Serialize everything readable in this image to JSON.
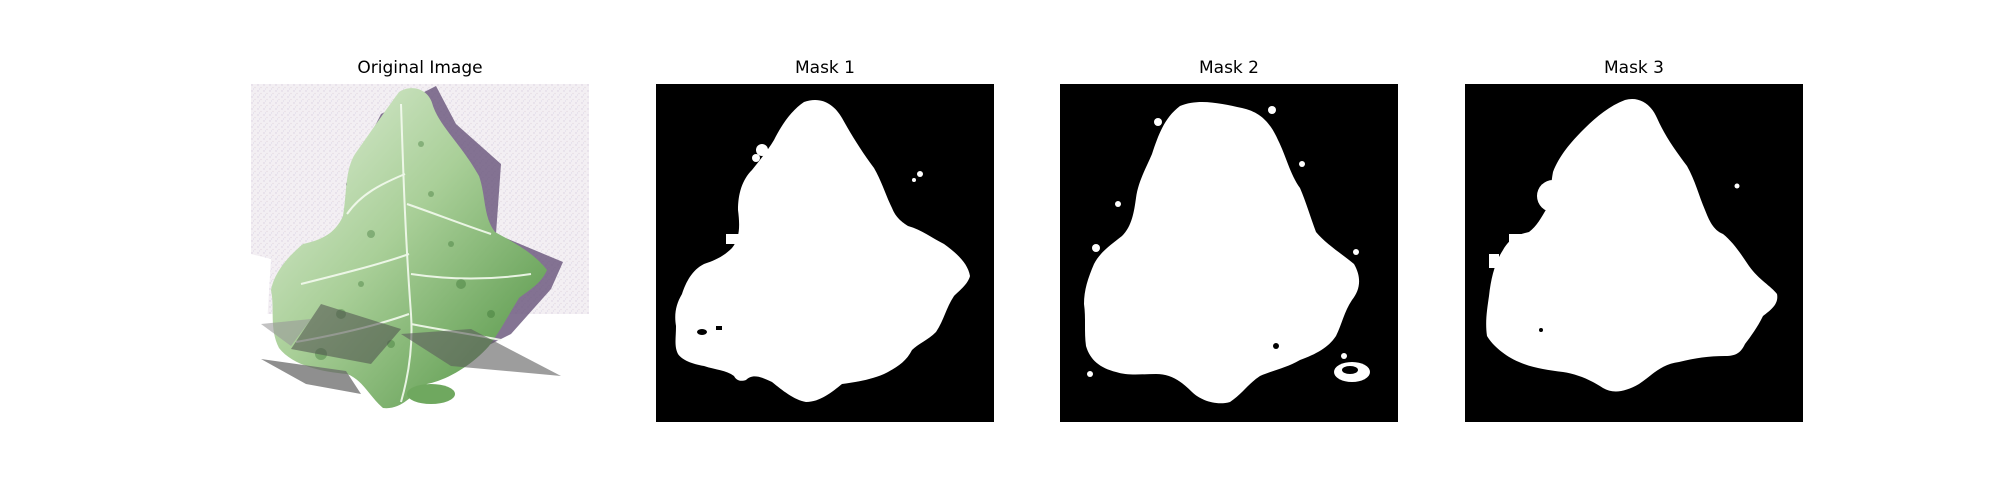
{
  "panels": [
    {
      "title": "Original Image",
      "icon": "leaf-photo"
    },
    {
      "title": "Mask 1",
      "icon": "segmentation-mask"
    },
    {
      "title": "Mask 2",
      "icon": "segmentation-mask"
    },
    {
      "title": "Mask 3",
      "icon": "segmentation-mask"
    }
  ],
  "colors": {
    "background": "#ffffff",
    "mask_background": "#000000",
    "mask_foreground": "#ffffff",
    "leaf_light": "#cfe6c4",
    "leaf_mid": "#7fb36e",
    "leaf_dark": "#2f6a2a",
    "shadow": "#6b5a7a",
    "paper": "#f1eef1"
  }
}
